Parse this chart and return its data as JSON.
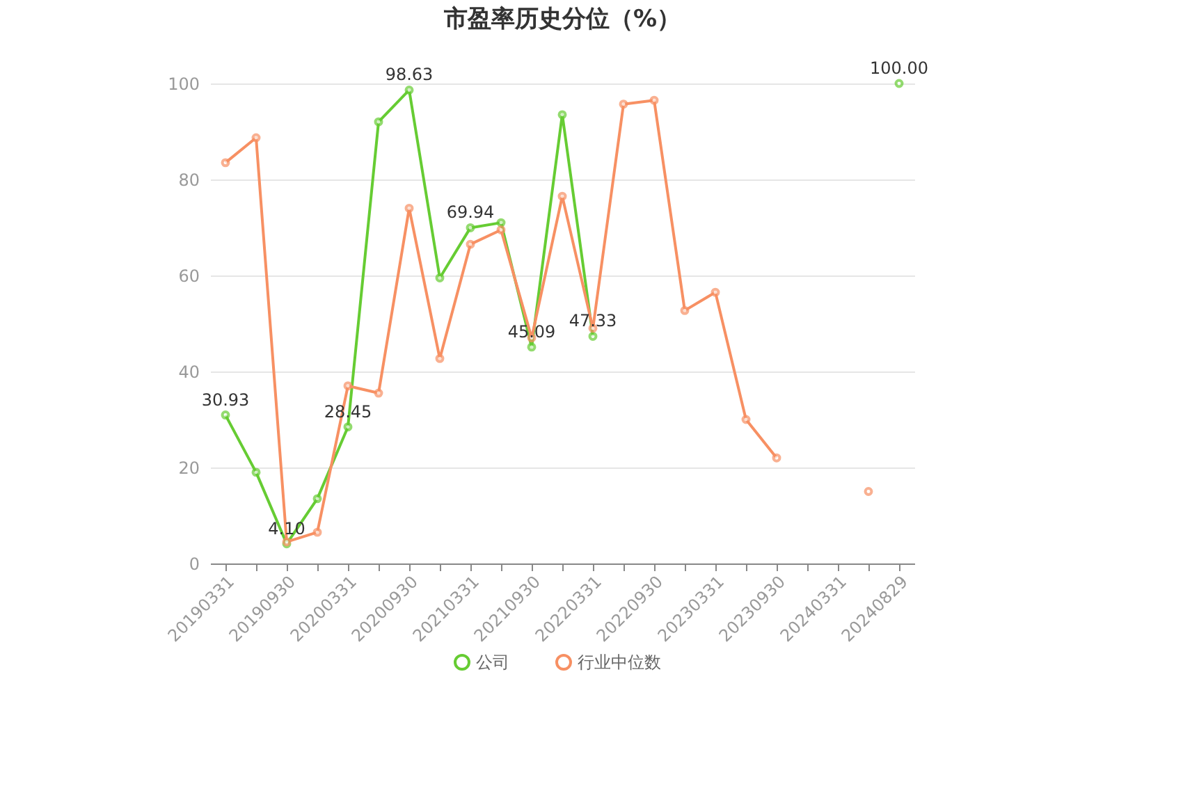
{
  "chart_data": {
    "type": "line",
    "title": "市盈率历史分位（%）",
    "categories": [
      "20190331",
      null,
      "20190930",
      null,
      "20200331",
      null,
      "20200930",
      null,
      "20210331",
      null,
      "20210930",
      null,
      "20220331",
      null,
      "20220930",
      null,
      "20230331",
      null,
      "20230930",
      null,
      "20240331",
      null,
      "20240829"
    ],
    "series": [
      {
        "name": "公司",
        "color": "#66cc33",
        "values": [
          30.93,
          19,
          4.1,
          13.5,
          28.45,
          92,
          98.63,
          59.5,
          69.94,
          71,
          45.09,
          93.5,
          47.33,
          null,
          null,
          null,
          null,
          null,
          null,
          null,
          null,
          null,
          100.0
        ],
        "value_labels": [
          "30.93",
          null,
          "4.10",
          null,
          "28.45",
          null,
          "98.63",
          null,
          "69.94",
          null,
          "45.09",
          null,
          "47.33",
          null,
          null,
          null,
          null,
          null,
          null,
          null,
          null,
          null,
          "100.00"
        ]
      },
      {
        "name": "行业中位数",
        "color": "#f79063",
        "values": [
          83.5,
          88.7,
          4.5,
          6.5,
          37,
          35.5,
          74,
          42.7,
          66.5,
          69.5,
          47,
          76.5,
          49,
          95.7,
          96.5,
          52.7,
          56.5,
          30,
          22,
          null,
          null,
          15,
          null
        ]
      }
    ],
    "ylim": [
      0,
      100
    ],
    "yticks": [
      0,
      20,
      40,
      60,
      80,
      100
    ],
    "grid": "y",
    "legend": "bottom",
    "marker": "circle"
  }
}
